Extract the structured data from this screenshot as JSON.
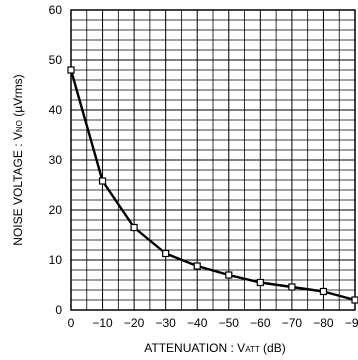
{
  "chart_data": {
    "type": "line",
    "title": "",
    "xlabel": "ATTENUATION : V",
    "xlabel_sub": "ATT",
    "xlabel_suffix": " (dB)",
    "ylabel": "NOISE VOLTAGE : V",
    "ylabel_sub": "NO",
    "ylabel_suffix": " (µVrms)",
    "xlim": [
      0,
      -90
    ],
    "ylim": [
      0,
      60
    ],
    "x_ticks": [
      {
        "value": 0,
        "label": "0"
      },
      {
        "value": -10,
        "label": "−10"
      },
      {
        "value": -20,
        "label": "−20"
      },
      {
        "value": -30,
        "label": "−30"
      },
      {
        "value": -40,
        "label": "−40"
      },
      {
        "value": -50,
        "label": "−50"
      },
      {
        "value": -60,
        "label": "−60"
      },
      {
        "value": -70,
        "label": "−70"
      },
      {
        "value": -80,
        "label": "−80"
      },
      {
        "value": -90,
        "label": "−90"
      }
    ],
    "y_ticks": [
      {
        "value": 0,
        "label": "0"
      },
      {
        "value": 10,
        "label": "10"
      },
      {
        "value": 20,
        "label": "20"
      },
      {
        "value": 30,
        "label": "30"
      },
      {
        "value": 40,
        "label": "40"
      },
      {
        "value": 50,
        "label": "50"
      },
      {
        "value": 60,
        "label": "60"
      }
    ],
    "grid": true,
    "x_minor_per_major": 2,
    "y_minor_per_major": 5,
    "legend": "none",
    "series": [
      {
        "x": [
          0,
          -10,
          -20,
          -30,
          -40,
          -50,
          -60,
          -70,
          -80,
          -90
        ],
        "y": [
          48,
          25.8,
          16.5,
          11.3,
          8.8,
          7,
          5.5,
          4.6,
          3.7,
          2
        ],
        "marker": "square-open",
        "color": "#000000"
      }
    ]
  }
}
